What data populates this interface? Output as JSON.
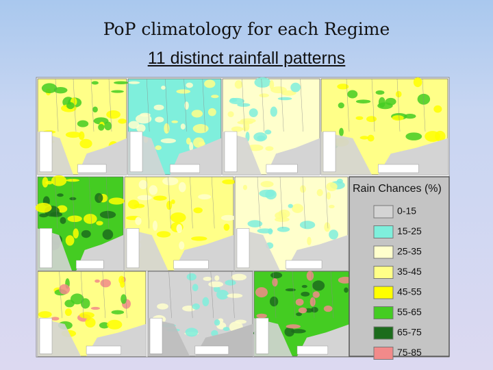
{
  "header": {
    "title": "PoP climatology for each Regime",
    "subtitle": "11 distinct rainfall patterns"
  },
  "legend": {
    "title": "Rain Chances (%)",
    "items": [
      {
        "label": "0-15",
        "color": "#d4d4d4"
      },
      {
        "label": "15-25",
        "color": "#7fefdc"
      },
      {
        "label": "25-35",
        "color": "#ffffcc"
      },
      {
        "label": "35-45",
        "color": "#ffff88"
      },
      {
        "label": "45-55",
        "color": "#ffff00"
      },
      {
        "label": "55-65",
        "color": "#44cc22"
      },
      {
        "label": "65-75",
        "color": "#1c6c1c"
      },
      {
        "label": "75-85",
        "color": "#f28a8a"
      }
    ]
  }
}
